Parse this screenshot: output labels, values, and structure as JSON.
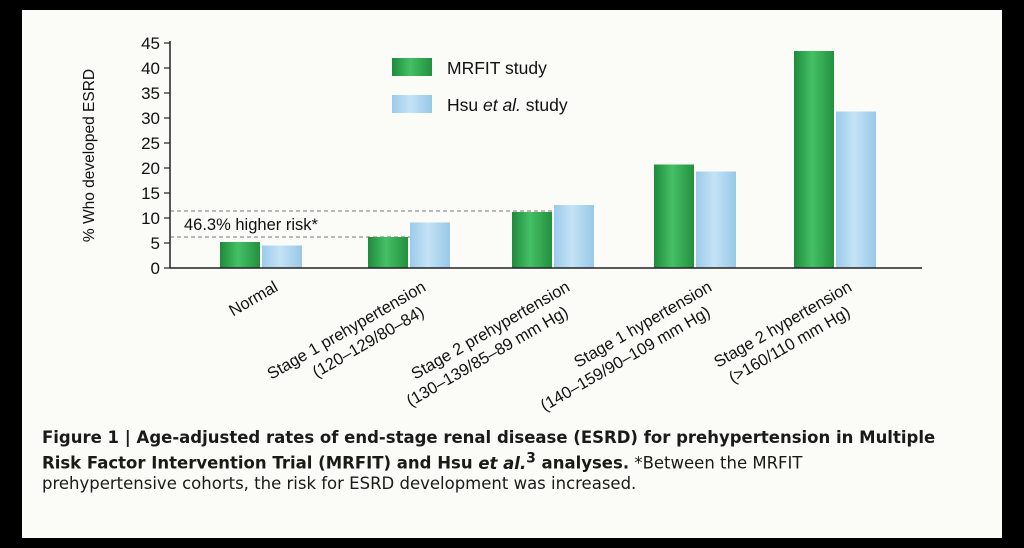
{
  "chart_data": {
    "type": "bar",
    "ylabel": "% Who developed ESRD",
    "ylim": [
      0,
      45
    ],
    "yticks": [
      0,
      5,
      10,
      15,
      20,
      25,
      30,
      35,
      40,
      45
    ],
    "grid": false,
    "legend_position": "top",
    "categories": [
      [
        "Normal"
      ],
      [
        "Stage 1 prehypertension",
        "(120–129/80–84)"
      ],
      [
        "Stage 2 prehypertension",
        "(130–139/85–89 mm Hg)"
      ],
      [
        "Stage 1 hypertension",
        "(140–159/90–109 mm Hg)"
      ],
      [
        "Stage 2 hypertension",
        "(>160/110 mm Hg)"
      ]
    ],
    "series": [
      {
        "name": "MRFIT study",
        "name_parts": [
          "MRFIT study"
        ],
        "values": [
          5.2,
          6.2,
          11.2,
          20.7,
          43.4
        ],
        "color": "#2fa84f"
      },
      {
        "name": "Hsu et al. study",
        "name_parts": [
          "Hsu ",
          "et al.",
          " study"
        ],
        "values": [
          4.5,
          9.1,
          12.6,
          19.3,
          31.3
        ],
        "color": "#a9d4ee"
      }
    ],
    "annotation": {
      "text": "46.3% higher risk*",
      "y_low": 6.2,
      "y_high": 11.4
    }
  },
  "caption": {
    "bold_parts": [
      "Figure 1 | Age-adjusted rates of end-stage renal disease (ESRD) for prehypertension in Multiple Risk Factor Intervention Trial (MRFIT) and Hsu ",
      "et al.",
      "3",
      " analyses."
    ],
    "rest": " *Between the MRFIT prehypertensive cohorts, the risk for ESRD development was increased."
  },
  "colors": {
    "background": "#fbfbf8",
    "border": "#000000",
    "axis": "#222222"
  }
}
